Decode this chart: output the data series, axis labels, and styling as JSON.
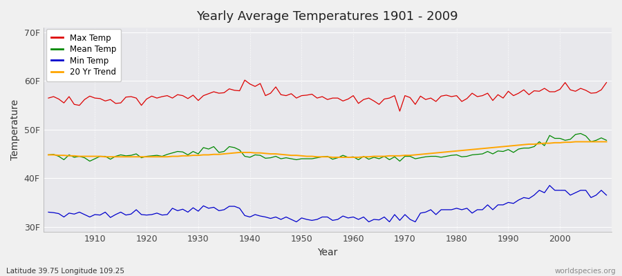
{
  "title": "Yearly Average Temperatures 1901 - 2009",
  "xlabel": "Year",
  "ylabel": "Temperature",
  "years_start": 1901,
  "years_end": 2009,
  "fig_bg_color": "#f0f0f0",
  "plot_bg_color": "#e8e8ec",
  "grid_color": "#ffffff",
  "max_temp_color": "#dd0000",
  "mean_temp_color": "#008800",
  "min_temp_color": "#0000cc",
  "trend_color": "#ffa500",
  "yticks": [
    30,
    40,
    50,
    60,
    70
  ],
  "ytick_labels": [
    "30F",
    "40F",
    "50F",
    "60F",
    "70F"
  ],
  "xticks": [
    1910,
    1920,
    1930,
    1940,
    1950,
    1960,
    1970,
    1980,
    1990,
    2000
  ],
  "legend_labels": [
    "Max Temp",
    "Mean Temp",
    "Min Temp",
    "20 Yr Trend"
  ],
  "footer_left": "Latitude 39.75 Longitude 109.25",
  "footer_right": "worldspecies.org",
  "ylim": [
    29,
    71
  ],
  "xlim_start": 1900,
  "xlim_end": 2010,
  "max_temps": [
    56.5,
    56.8,
    56.3,
    55.5,
    56.8,
    55.2,
    55.0,
    56.2,
    56.9,
    56.5,
    56.4,
    55.9,
    56.2,
    55.4,
    55.5,
    56.7,
    56.8,
    56.5,
    55.0,
    56.3,
    56.9,
    56.5,
    56.8,
    57.0,
    56.5,
    57.2,
    57.0,
    56.4,
    57.1,
    56.0,
    57.0,
    57.4,
    57.8,
    57.5,
    57.6,
    58.4,
    58.1,
    58.0,
    60.2,
    59.4,
    58.9,
    59.5,
    57.0,
    57.5,
    58.8,
    57.2,
    57.0,
    57.4,
    56.5,
    57.0,
    57.1,
    57.3,
    56.5,
    56.8,
    56.2,
    56.5,
    56.5,
    55.9,
    56.3,
    57.0,
    55.4,
    56.2,
    56.5,
    55.9,
    55.2,
    56.3,
    56.5,
    57.0,
    53.8,
    57.0,
    56.6,
    55.2,
    56.9,
    56.2,
    56.5,
    55.8,
    56.9,
    57.1,
    56.8,
    57.0,
    55.8,
    56.4,
    57.5,
    56.8,
    57.0,
    57.5,
    56.0,
    57.2,
    56.5,
    57.9,
    57.0,
    57.5,
    58.2,
    57.2,
    58.0,
    57.9,
    58.5,
    57.8,
    57.8,
    58.3,
    59.7,
    58.2,
    57.9,
    58.5,
    58.1,
    57.5,
    57.6,
    58.2,
    59.7
  ],
  "mean_temps": [
    44.8,
    44.9,
    44.5,
    43.8,
    44.8,
    44.3,
    44.5,
    44.2,
    43.5,
    44.0,
    44.5,
    44.5,
    43.9,
    44.5,
    44.8,
    44.6,
    44.7,
    45.0,
    44.2,
    44.5,
    44.6,
    44.7,
    44.5,
    44.9,
    45.2,
    45.5,
    45.4,
    44.8,
    45.5,
    45.0,
    46.3,
    46.0,
    46.5,
    45.3,
    45.5,
    46.5,
    46.3,
    45.8,
    44.5,
    44.3,
    44.8,
    44.7,
    44.1,
    44.2,
    44.5,
    44.0,
    44.2,
    44.0,
    43.8,
    44.0,
    44.0,
    44.0,
    44.2,
    44.4,
    44.5,
    43.9,
    44.2,
    44.7,
    44.3,
    44.4,
    43.8,
    44.5,
    43.9,
    44.3,
    44.0,
    44.5,
    43.8,
    44.4,
    43.5,
    44.5,
    44.5,
    44.0,
    44.2,
    44.4,
    44.5,
    44.5,
    44.3,
    44.5,
    44.7,
    44.8,
    44.4,
    44.5,
    44.8,
    44.9,
    45.0,
    45.5,
    45.0,
    45.6,
    45.5,
    45.9,
    45.3,
    46.0,
    46.2,
    46.2,
    46.5,
    47.5,
    46.7,
    48.8,
    48.2,
    48.2,
    47.8,
    48.0,
    49.0,
    49.2,
    48.7,
    47.5,
    47.8,
    48.3,
    47.8
  ],
  "min_temps": [
    33.0,
    32.9,
    32.7,
    32.0,
    32.8,
    32.6,
    33.0,
    32.5,
    32.0,
    32.5,
    32.4,
    33.0,
    31.9,
    32.5,
    33.0,
    32.4,
    32.6,
    33.5,
    32.5,
    32.4,
    32.5,
    32.8,
    32.4,
    32.5,
    33.8,
    33.3,
    33.6,
    33.0,
    33.9,
    33.2,
    34.3,
    33.8,
    34.0,
    33.3,
    33.5,
    34.2,
    34.2,
    33.8,
    32.3,
    32.0,
    32.5,
    32.2,
    32.0,
    31.7,
    32.0,
    31.5,
    32.0,
    31.5,
    31.0,
    31.8,
    31.5,
    31.3,
    31.5,
    32.0,
    32.0,
    31.3,
    31.5,
    32.2,
    31.8,
    32.0,
    31.5,
    32.0,
    31.0,
    31.5,
    31.4,
    32.0,
    31.0,
    32.5,
    31.3,
    32.5,
    31.5,
    31.0,
    32.8,
    33.0,
    33.5,
    32.5,
    33.5,
    33.5,
    33.5,
    33.8,
    33.5,
    33.8,
    32.8,
    33.5,
    33.5,
    34.5,
    33.5,
    34.5,
    34.5,
    35.0,
    34.8,
    35.5,
    36.0,
    35.8,
    36.5,
    37.5,
    37.0,
    38.5,
    37.5,
    37.5,
    37.5,
    36.5,
    37.0,
    37.5,
    37.5,
    36.0,
    36.5,
    37.5,
    36.5
  ],
  "trend_temps": [
    44.8,
    44.8,
    44.7,
    44.7,
    44.6,
    44.6,
    44.5,
    44.5,
    44.5,
    44.5,
    44.5,
    44.4,
    44.4,
    44.4,
    44.4,
    44.4,
    44.4,
    44.4,
    44.4,
    44.4,
    44.4,
    44.4,
    44.4,
    44.4,
    44.5,
    44.5,
    44.6,
    44.6,
    44.7,
    44.7,
    44.8,
    44.8,
    44.9,
    44.9,
    45.0,
    45.1,
    45.2,
    45.3,
    45.3,
    45.3,
    45.2,
    45.2,
    45.1,
    45.0,
    45.0,
    44.9,
    44.8,
    44.7,
    44.7,
    44.6,
    44.5,
    44.5,
    44.4,
    44.4,
    44.4,
    44.3,
    44.3,
    44.3,
    44.3,
    44.3,
    44.3,
    44.4,
    44.4,
    44.5,
    44.5,
    44.5,
    44.6,
    44.6,
    44.6,
    44.7,
    44.7,
    44.8,
    44.9,
    45.0,
    45.1,
    45.2,
    45.3,
    45.4,
    45.5,
    45.6,
    45.7,
    45.8,
    45.9,
    46.0,
    46.1,
    46.2,
    46.3,
    46.4,
    46.5,
    46.6,
    46.7,
    46.8,
    46.9,
    47.0,
    47.0,
    47.1,
    47.2,
    47.2,
    47.3,
    47.3,
    47.4,
    47.4,
    47.5,
    47.5,
    47.5,
    47.5,
    47.5,
    47.5,
    47.5
  ]
}
